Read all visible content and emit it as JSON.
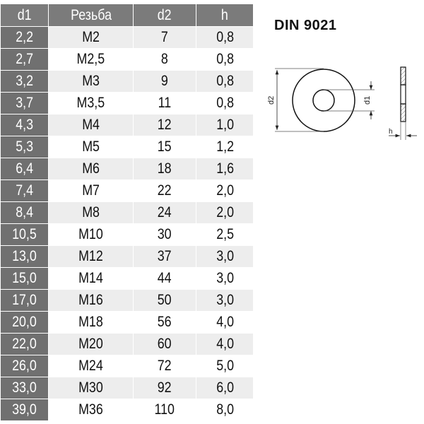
{
  "title": "DIN 9021",
  "table": {
    "headers": [
      "d1",
      "Резьба",
      "d2",
      "h"
    ],
    "rows": [
      [
        "2,2",
        "M2",
        "7",
        "0,8"
      ],
      [
        "2,7",
        "M2,5",
        "8",
        "0,8"
      ],
      [
        "3,2",
        "M3",
        "9",
        "0,8"
      ],
      [
        "3,7",
        "M3,5",
        "11",
        "0,8"
      ],
      [
        "4,3",
        "M4",
        "12",
        "1,0"
      ],
      [
        "5,3",
        "M5",
        "15",
        "1,2"
      ],
      [
        "6,4",
        "M6",
        "18",
        "1,6"
      ],
      [
        "7,4",
        "M7",
        "22",
        "2,0"
      ],
      [
        "8,4",
        "M8",
        "24",
        "2,0"
      ],
      [
        "10,5",
        "M10",
        "30",
        "2,5"
      ],
      [
        "13,0",
        "M12",
        "37",
        "3,0"
      ],
      [
        "15,0",
        "M14",
        "44",
        "3,0"
      ],
      [
        "17,0",
        "M16",
        "50",
        "3,0"
      ],
      [
        "20,0",
        "M18",
        "56",
        "4,0"
      ],
      [
        "22,0",
        "M20",
        "60",
        "4,0"
      ],
      [
        "26,0",
        "M24",
        "72",
        "5,0"
      ],
      [
        "33,0",
        "M30",
        "92",
        "6,0"
      ],
      [
        "39,0",
        "M36",
        "110",
        "8,0"
      ]
    ]
  },
  "drawing": {
    "label_d2": "d2",
    "label_d1": "d1",
    "label_h": "h"
  }
}
